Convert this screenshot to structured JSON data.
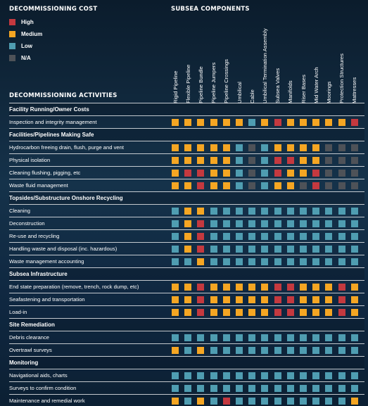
{
  "legend": {
    "title": "DECOMMISSIONING COST",
    "items": [
      {
        "label": "High",
        "level": "H"
      },
      {
        "label": "Medium",
        "level": "M"
      },
      {
        "label": "Low",
        "level": "L"
      },
      {
        "label": "N/A",
        "level": "N"
      }
    ]
  },
  "colors": {
    "H": "#c4393f",
    "M": "#f5a623",
    "L": "#4f9db1",
    "N": "#4e5258"
  },
  "components_title": "SUBSEA COMPONENTS",
  "activities_title": "DECOMMISSIONING ACTIVITIES",
  "components": [
    "Rigid Pipeline",
    "Flexible Pipeline",
    "Pipeline Bundle",
    "Pipeline Jumpers",
    "Pipeline Crossings",
    "Umbilical",
    "Cable",
    "Umbilical Termination Assembly",
    "Subsea Valves",
    "Manifolds",
    "Riser Bases",
    "Mid Water Arch",
    "Moorings",
    "Protection Structures",
    "Mattresses"
  ],
  "rows": [
    {
      "type": "section",
      "label": "Facility Running/Owner Costs"
    },
    {
      "type": "activity",
      "label": "Inspection and integrity management",
      "cells": [
        "M",
        "M",
        "M",
        "M",
        "M",
        "M",
        "L",
        "M",
        "H",
        "M",
        "M",
        "M",
        "M",
        "M",
        "H"
      ]
    },
    {
      "type": "section",
      "label": "Facilities/Pipelines Making Safe"
    },
    {
      "type": "activity",
      "label": "Hydrocarbon freeing drain, flush, purge and vent",
      "cells": [
        "M",
        "M",
        "M",
        "M",
        "M",
        "L",
        "N",
        "L",
        "M",
        "M",
        "M",
        "M",
        "N",
        "N",
        "N"
      ]
    },
    {
      "type": "activity",
      "label": "Physical isolation",
      "cells": [
        "M",
        "M",
        "M",
        "M",
        "M",
        "L",
        "N",
        "L",
        "H",
        "H",
        "M",
        "M",
        "N",
        "N",
        "N"
      ]
    },
    {
      "type": "activity",
      "label": "Cleaning flushing, pigging, etc",
      "cells": [
        "M",
        "H",
        "H",
        "M",
        "M",
        "L",
        "N",
        "L",
        "H",
        "M",
        "M",
        "H",
        "N",
        "N",
        "N"
      ]
    },
    {
      "type": "activity",
      "label": "Waste fluid management",
      "cells": [
        "M",
        "M",
        "H",
        "M",
        "M",
        "L",
        "N",
        "L",
        "M",
        "M",
        "N",
        "H",
        "N",
        "N",
        "N"
      ]
    },
    {
      "type": "section",
      "label": "Topsides/Substructure Onshore Recycling"
    },
    {
      "type": "activity",
      "label": "Cleaning",
      "cells": [
        "L",
        "M",
        "M",
        "L",
        "L",
        "L",
        "L",
        "L",
        "L",
        "L",
        "L",
        "L",
        "L",
        "L",
        "L"
      ]
    },
    {
      "type": "activity",
      "label": "Deconstruction",
      "cells": [
        "L",
        "M",
        "H",
        "L",
        "L",
        "L",
        "L",
        "L",
        "L",
        "L",
        "L",
        "L",
        "L",
        "L",
        "L"
      ]
    },
    {
      "type": "activity",
      "label": "Re-use and recycling",
      "cells": [
        "L",
        "M",
        "H",
        "L",
        "L",
        "L",
        "L",
        "L",
        "L",
        "L",
        "L",
        "L",
        "L",
        "L",
        "L"
      ]
    },
    {
      "type": "activity",
      "label": "Handling waste and disposal (inc. hazardous)",
      "cells": [
        "L",
        "M",
        "H",
        "L",
        "L",
        "L",
        "L",
        "L",
        "L",
        "L",
        "L",
        "L",
        "L",
        "L",
        "L"
      ]
    },
    {
      "type": "activity",
      "label": "Waste management accounting",
      "cells": [
        "L",
        "L",
        "M",
        "L",
        "L",
        "L",
        "L",
        "L",
        "L",
        "L",
        "L",
        "L",
        "L",
        "L",
        "L"
      ]
    },
    {
      "type": "section",
      "label": "Subsea Infrastructure"
    },
    {
      "type": "activity",
      "label": "End state preparation (remove, trench, rock dump, etc)",
      "cells": [
        "M",
        "M",
        "H",
        "M",
        "M",
        "M",
        "M",
        "M",
        "H",
        "H",
        "M",
        "M",
        "M",
        "H",
        "M"
      ]
    },
    {
      "type": "activity",
      "label": "Seafastening and transportation",
      "cells": [
        "M",
        "M",
        "H",
        "M",
        "M",
        "M",
        "M",
        "M",
        "H",
        "H",
        "M",
        "M",
        "M",
        "H",
        "M"
      ]
    },
    {
      "type": "activity",
      "label": "Load-in",
      "cells": [
        "M",
        "M",
        "H",
        "M",
        "M",
        "M",
        "M",
        "M",
        "H",
        "H",
        "M",
        "M",
        "M",
        "H",
        "M"
      ]
    },
    {
      "type": "section",
      "label": "Site Remediation"
    },
    {
      "type": "activity",
      "label": "Debris clearance",
      "cells": [
        "L",
        "L",
        "L",
        "L",
        "L",
        "L",
        "L",
        "L",
        "L",
        "L",
        "L",
        "L",
        "L",
        "L",
        "L"
      ]
    },
    {
      "type": "activity",
      "label": "Overtrawl surveys",
      "cells": [
        "M",
        "L",
        "M",
        "L",
        "L",
        "L",
        "L",
        "L",
        "L",
        "L",
        "L",
        "L",
        "L",
        "L",
        "L"
      ]
    },
    {
      "type": "section",
      "label": "Monitoring"
    },
    {
      "type": "activity",
      "label": "Navigational aids, charts",
      "cells": [
        "L",
        "L",
        "L",
        "L",
        "L",
        "L",
        "L",
        "L",
        "L",
        "L",
        "L",
        "L",
        "L",
        "L",
        "L"
      ]
    },
    {
      "type": "activity",
      "label": "Surveys to confirm condition",
      "cells": [
        "L",
        "L",
        "L",
        "L",
        "L",
        "L",
        "L",
        "L",
        "L",
        "L",
        "L",
        "L",
        "L",
        "L",
        "L"
      ]
    },
    {
      "type": "activity",
      "label": "Maintenance and remedial work",
      "cells": [
        "M",
        "L",
        "M",
        "L",
        "H",
        "L",
        "L",
        "L",
        "L",
        "L",
        "L",
        "L",
        "L",
        "L",
        "M"
      ]
    }
  ]
}
